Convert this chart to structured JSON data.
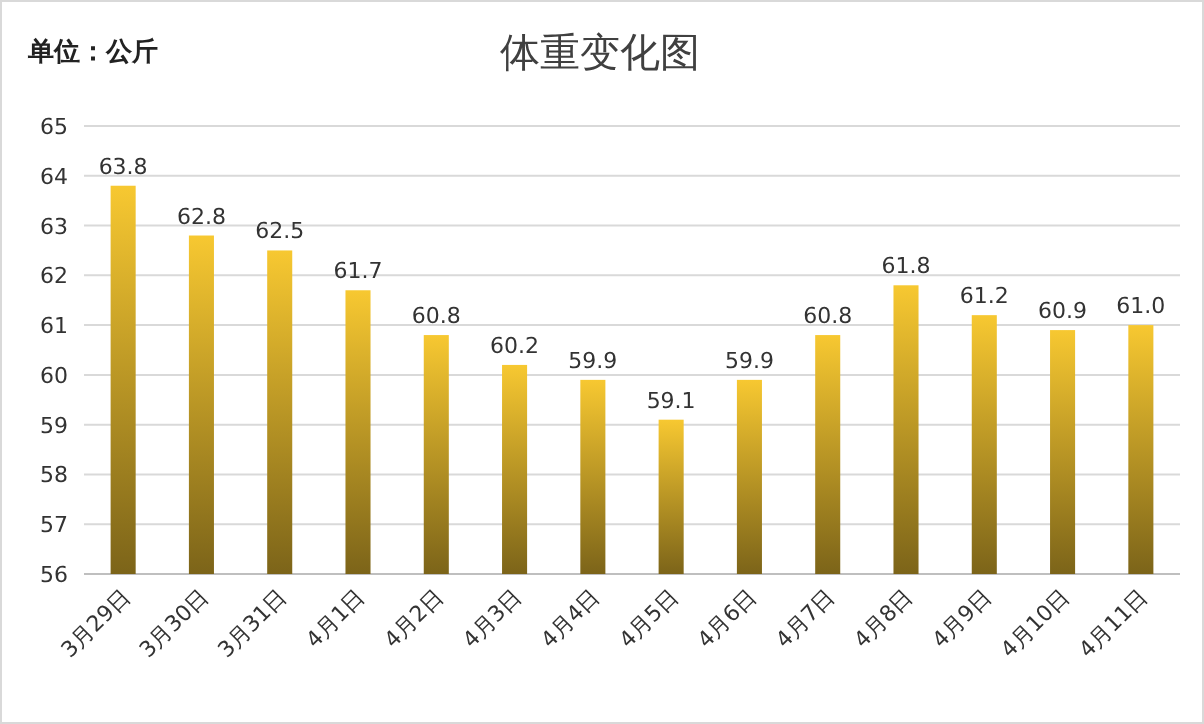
{
  "chart_data": {
    "type": "bar",
    "title": "体重变化图",
    "annotations": [
      "单位：公斤"
    ],
    "categories": [
      "3月29日",
      "3月30日",
      "3月31日",
      "4月1日",
      "4月2日",
      "4月3日",
      "4月4日",
      "4月5日",
      "4月6日",
      "4月7日",
      "4月8日",
      "4月9日",
      "4月10日",
      "4月11日"
    ],
    "values": [
      63.8,
      62.8,
      62.5,
      61.7,
      60.8,
      60.2,
      59.9,
      59.1,
      59.9,
      60.8,
      61.8,
      61.2,
      60.9,
      61.0
    ],
    "value_labels": [
      "63.8",
      "62.8",
      "62.5",
      "61.7",
      "60.8",
      "60.2",
      "59.9",
      "59.1",
      "59.9",
      "60.8",
      "61.8",
      "61.2",
      "60.9",
      "61.0"
    ],
    "color": "#f7c831",
    "ylim": [
      56,
      65
    ],
    "yticks": [
      56,
      57,
      58,
      59,
      60,
      61,
      62,
      63,
      64,
      65
    ],
    "grid": "y"
  }
}
